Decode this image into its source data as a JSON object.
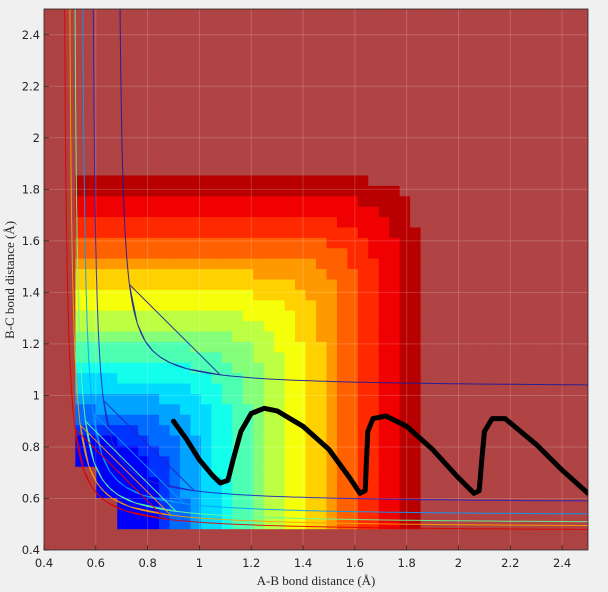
{
  "chart_data": {
    "type": "contour",
    "title": "",
    "xlabel": "A-B bond distance (Å)",
    "ylabel": "B-C bond distance (Å)",
    "xlim": [
      0.4,
      2.5
    ],
    "ylim": [
      0.4,
      2.5
    ],
    "x_ticks": [
      "0.4",
      "0.6",
      "0.8",
      "1",
      "1.2",
      "1.4",
      "1.6",
      "1.8",
      "2",
      "2.2",
      "2.4"
    ],
    "y_ticks": [
      "0.4",
      "0.6",
      "0.8",
      "1",
      "1.2",
      "1.4",
      "1.6",
      "1.8",
      "2",
      "2.2",
      "2.4"
    ],
    "grid": true,
    "colormap": "jet",
    "background_color": "#f0f0f0",
    "trajectory": {
      "color": "#000000",
      "points": [
        [
          0.9,
          0.9
        ],
        [
          0.95,
          0.83
        ],
        [
          1.0,
          0.75
        ],
        [
          1.05,
          0.69
        ],
        [
          1.08,
          0.66
        ],
        [
          1.11,
          0.67
        ],
        [
          1.13,
          0.75
        ],
        [
          1.16,
          0.86
        ],
        [
          1.2,
          0.93
        ],
        [
          1.25,
          0.95
        ],
        [
          1.3,
          0.94
        ],
        [
          1.4,
          0.88
        ],
        [
          1.5,
          0.79
        ],
        [
          1.58,
          0.68
        ],
        [
          1.62,
          0.62
        ],
        [
          1.64,
          0.63
        ],
        [
          1.645,
          0.75
        ],
        [
          1.65,
          0.86
        ],
        [
          1.67,
          0.91
        ],
        [
          1.72,
          0.92
        ],
        [
          1.8,
          0.88
        ],
        [
          1.9,
          0.79
        ],
        [
          2.0,
          0.68
        ],
        [
          2.06,
          0.62
        ],
        [
          2.08,
          0.63
        ],
        [
          2.09,
          0.75
        ],
        [
          2.1,
          0.86
        ],
        [
          2.13,
          0.91
        ],
        [
          2.18,
          0.91
        ],
        [
          2.3,
          0.81
        ],
        [
          2.4,
          0.71
        ],
        [
          2.5,
          0.62
        ]
      ]
    }
  }
}
